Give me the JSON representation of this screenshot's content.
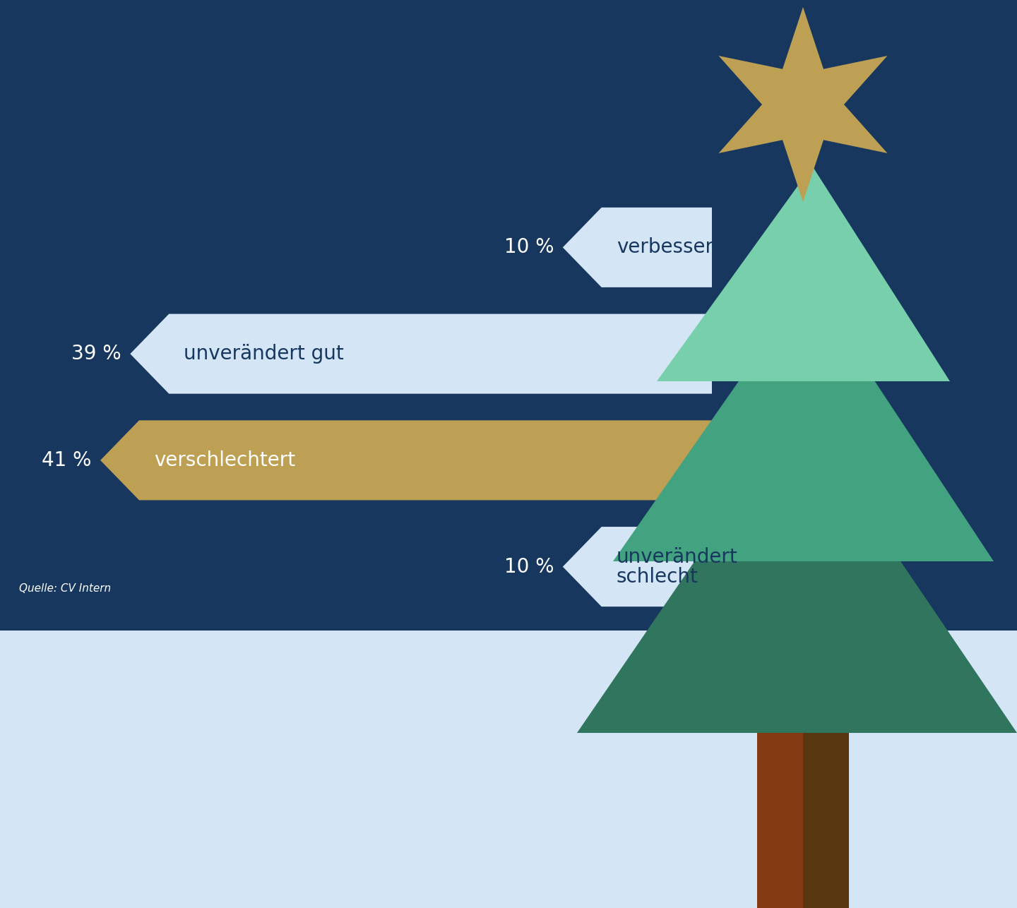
{
  "chart_data": {
    "type": "bar",
    "orientation": "horizontal",
    "categories": [
      "verbessert",
      "unverändert gut",
      "verschlechtert",
      "unverändert schlecht"
    ],
    "values": [
      10,
      39,
      41,
      10
    ],
    "value_labels": [
      "10 %",
      "39 %",
      "41 %",
      "10 %"
    ],
    "colors": [
      "#d4e5f5",
      "#d4e5f5",
      "#bda053",
      "#d4e5f5"
    ],
    "xlim": [
      0,
      45
    ],
    "tick_labels": false,
    "data_labels": true,
    "source": "Quelle: CV Intern"
  }
}
